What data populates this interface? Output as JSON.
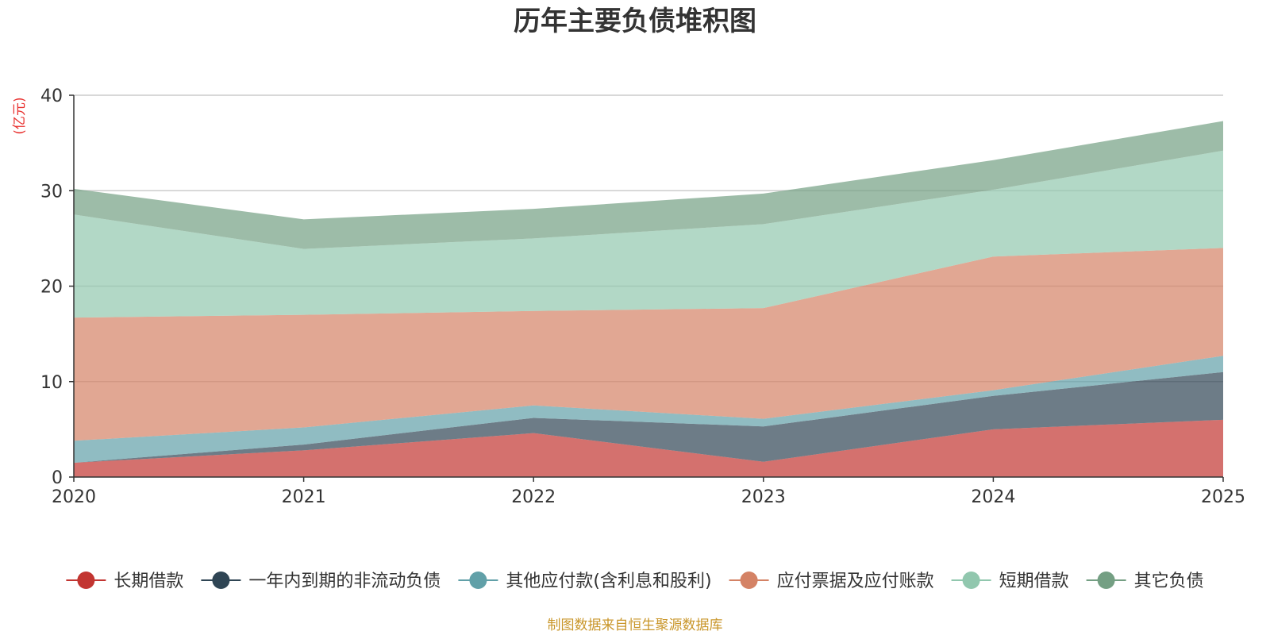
{
  "chart_data": {
    "type": "area",
    "stacked": true,
    "title": "历年主要负债堆积图",
    "ylabel": "(亿元)",
    "xlabel": "",
    "x": [
      "2020",
      "2021",
      "2022",
      "2023",
      "2024",
      "2025"
    ],
    "ylim": [
      0,
      40
    ],
    "yticks": [
      0,
      10,
      20,
      30,
      40
    ],
    "grid": true,
    "legend_position": "bottom",
    "series": [
      {
        "name": "长期借款",
        "color": "#c23531",
        "values": [
          1.5,
          2.8,
          4.6,
          1.6,
          5.0,
          6.0
        ]
      },
      {
        "name": "一年内到期的非流动负债",
        "color": "#2f4554",
        "values": [
          0.0,
          0.6,
          1.6,
          3.7,
          3.5,
          5.0
        ]
      },
      {
        "name": "其他应付款(含利息和股利)",
        "color": "#61a0a8",
        "values": [
          2.3,
          1.8,
          1.3,
          0.8,
          0.6,
          1.7
        ]
      },
      {
        "name": "应付票据及应付账款",
        "color": "#d48265",
        "values": [
          12.9,
          11.8,
          9.9,
          11.6,
          14.0,
          11.3
        ]
      },
      {
        "name": "短期借款",
        "color": "#91c7ae",
        "values": [
          10.8,
          6.9,
          7.6,
          8.8,
          7.0,
          10.2
        ]
      },
      {
        "name": "其它负债",
        "color": "#749f83",
        "values": [
          2.7,
          3.1,
          3.1,
          3.2,
          3.1,
          3.1
        ]
      }
    ]
  },
  "footer": {
    "source": "制图数据来自恒生聚源数据库"
  }
}
